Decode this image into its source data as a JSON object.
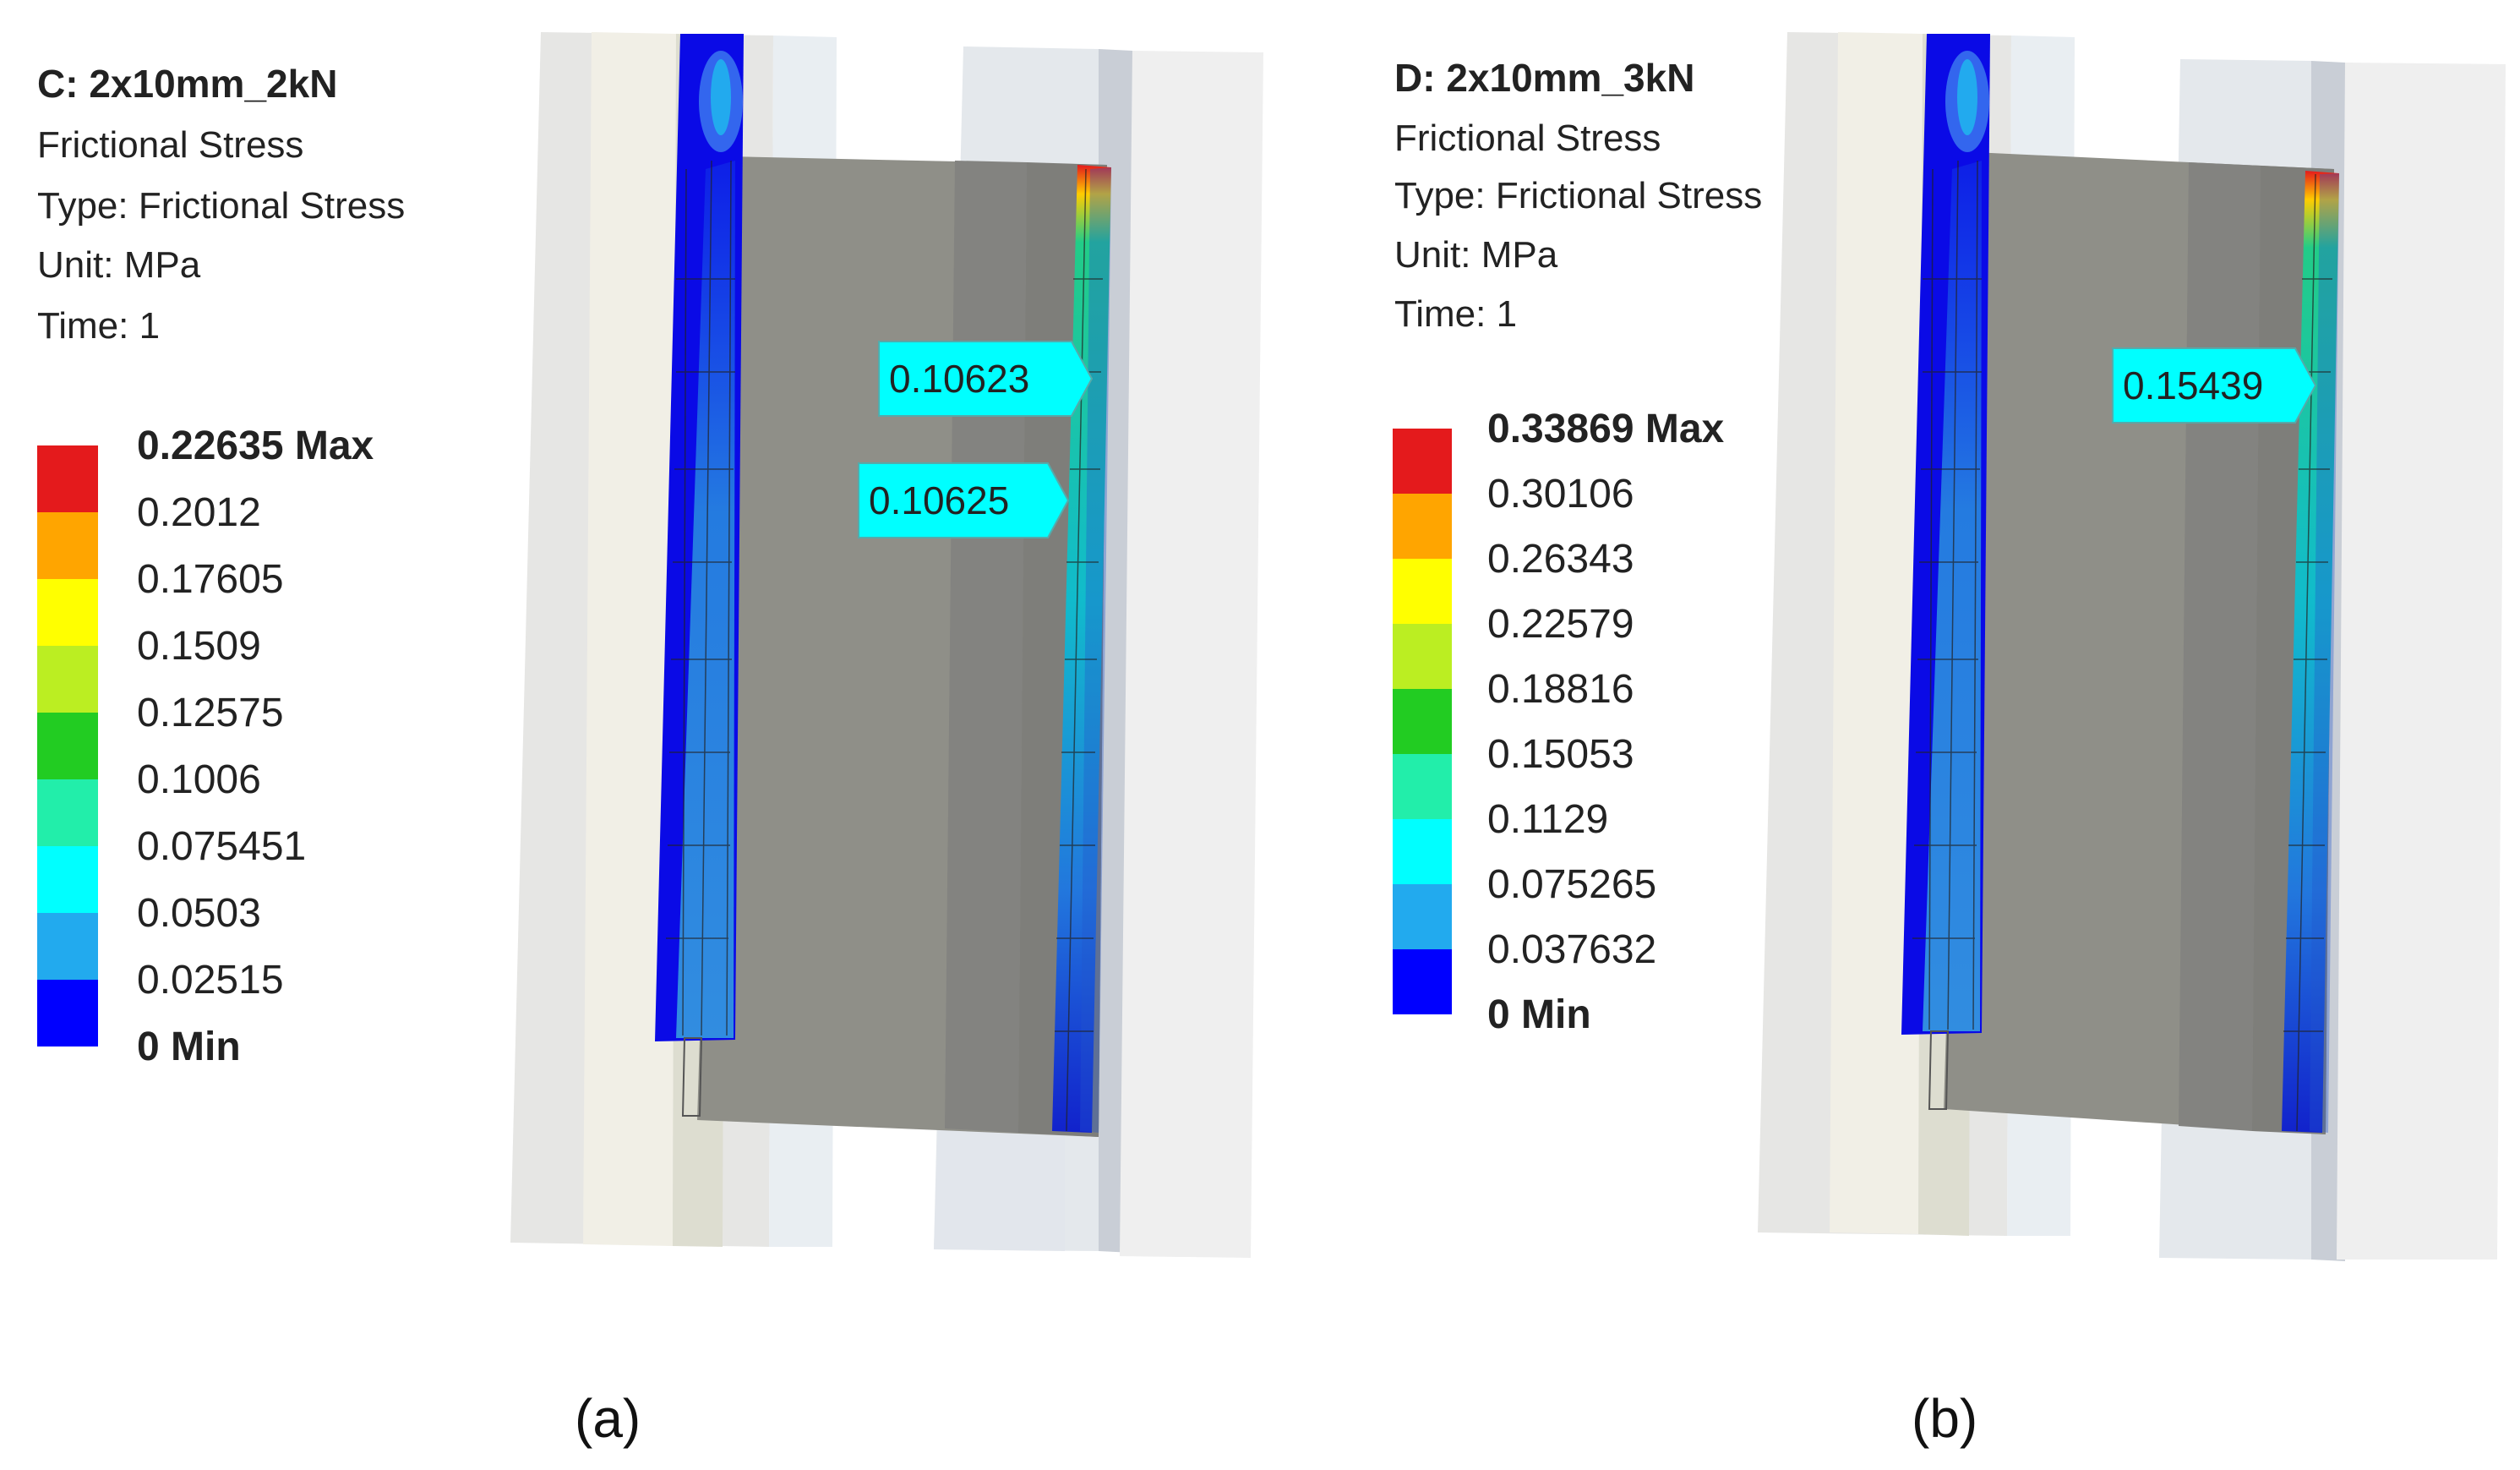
{
  "panels": [
    {
      "caption": "(a)",
      "header": {
        "title": "C: 2x10mm_2kN",
        "result": "Frictional Stress",
        "type": "Type: Frictional Stress",
        "unit": "Unit: MPa",
        "time": "Time: 1"
      },
      "legend": {
        "levels": [
          "0.22635 Max",
          "0.2012",
          "0.17605",
          "0.1509",
          "0.12575",
          "0.1006",
          "0.075451",
          "0.0503",
          "0.02515",
          "0 Min"
        ],
        "colors": [
          "#e41a1c",
          "#ffa500",
          "#ffff00",
          "#bbee22",
          "#22cc22",
          "#22eeaa",
          "#00ffff",
          "#22aaee",
          "#0000ff"
        ]
      },
      "probes": [
        {
          "label": "0.10623"
        },
        {
          "label": "0.10625"
        }
      ]
    },
    {
      "caption": "(b)",
      "header": {
        "title": "D: 2x10mm_3kN",
        "result": "Frictional Stress",
        "type": "Type: Frictional Stress",
        "unit": "Unit: MPa",
        "time": "Time: 1"
      },
      "legend": {
        "levels": [
          "0.33869 Max",
          "0.30106",
          "0.26343",
          "0.22579",
          "0.18816",
          "0.15053",
          "0.1129",
          "0.075265",
          "0.037632",
          "0 Min"
        ],
        "colors": [
          "#e41a1c",
          "#ffa500",
          "#ffff00",
          "#bbee22",
          "#22cc22",
          "#22eeaa",
          "#00ffff",
          "#22aaee",
          "#0000ff"
        ]
      },
      "probes": [
        {
          "label": "0.15439"
        }
      ]
    }
  ]
}
